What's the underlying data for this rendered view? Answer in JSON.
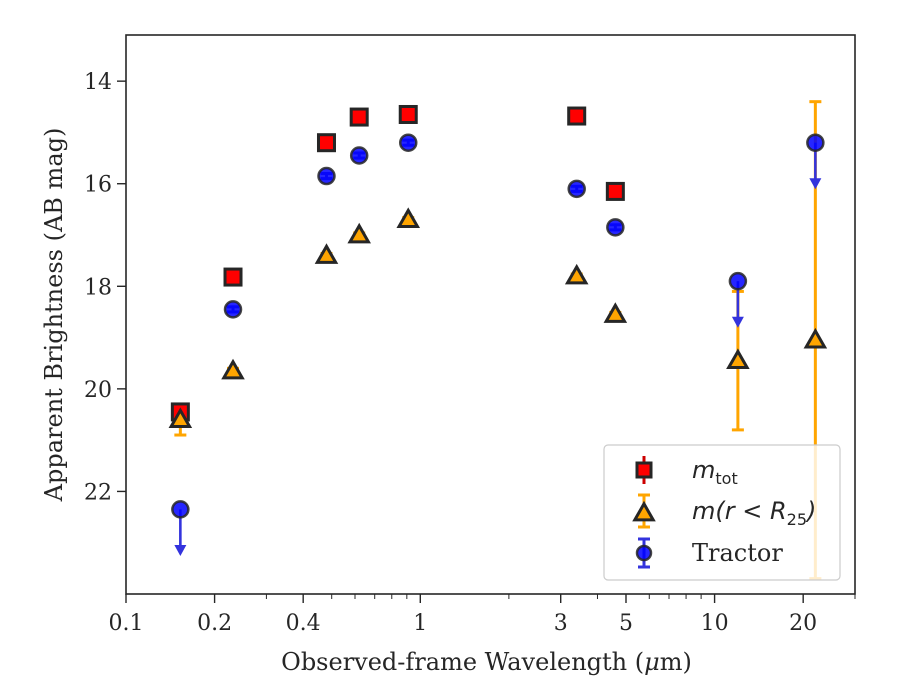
{
  "chart_data": {
    "type": "scatter",
    "xscale": "log",
    "yscale": "linear",
    "y_inverted": true,
    "xlim": [
      0.1,
      30
    ],
    "ylim": [
      24.0,
      13.1
    ],
    "xlabel": "Observed-frame Wavelength (μm)",
    "xlabel_parts": [
      "Observed-frame Wavelength (",
      "μ",
      "m)"
    ],
    "ylabel": "Apparent Brightness (AB mag)",
    "xticks": [
      {
        "value": 0.1,
        "label": "0.1"
      },
      {
        "value": 0.2,
        "label": "0.2"
      },
      {
        "value": 0.4,
        "label": "0.4"
      },
      {
        "value": 1,
        "label": "1"
      },
      {
        "value": 3,
        "label": "3"
      },
      {
        "value": 5,
        "label": "5"
      },
      {
        "value": 10,
        "label": "10"
      },
      {
        "value": 20,
        "label": "20"
      }
    ],
    "yticks": [
      {
        "value": 14,
        "label": "14"
      },
      {
        "value": 16,
        "label": "16"
      },
      {
        "value": 18,
        "label": "18"
      },
      {
        "value": 20,
        "label": "20"
      },
      {
        "value": 22,
        "label": "22"
      }
    ],
    "grid": false,
    "legend_position": "lower-right",
    "series": [
      {
        "name": "m_tot",
        "legend_main": "m",
        "legend_sub": "tot",
        "marker": "square",
        "color": "#ff0000",
        "edge": "#262626",
        "points": [
          {
            "x": 0.153,
            "y": 20.45,
            "err": 0.06
          },
          {
            "x": 0.231,
            "y": 17.82,
            "err": 0.05
          },
          {
            "x": 0.48,
            "y": 15.2,
            "err": 0.03
          },
          {
            "x": 0.62,
            "y": 14.7,
            "err": 0.03
          },
          {
            "x": 0.91,
            "y": 14.65,
            "err": 0.03
          },
          {
            "x": 3.4,
            "y": 14.68,
            "err": 0.03
          },
          {
            "x": 4.6,
            "y": 16.15,
            "err": 0.03
          }
        ]
      },
      {
        "name": "m(r < R_25)",
        "legend_main": "m(r < R",
        "legend_sub": "25",
        "legend_end": ")",
        "marker": "triangle",
        "color": "#ffa500",
        "edge": "#262626",
        "points": [
          {
            "x": 0.153,
            "y": 20.6,
            "err_lo": 0.25,
            "err_hi": 0.3
          },
          {
            "x": 0.231,
            "y": 19.65,
            "err": 0.05
          },
          {
            "x": 0.48,
            "y": 17.4,
            "err": 0.04
          },
          {
            "x": 0.62,
            "y": 17.0,
            "err": 0.04
          },
          {
            "x": 0.91,
            "y": 16.7,
            "err": 0.04
          },
          {
            "x": 3.4,
            "y": 17.8,
            "err": 0.04
          },
          {
            "x": 4.6,
            "y": 18.55,
            "err": 0.04
          },
          {
            "x": 12.0,
            "y": 19.45,
            "err_lo": 1.35,
            "err_hi": 1.35
          },
          {
            "x": 22.0,
            "y": 19.05,
            "err_lo": 4.65,
            "err_hi": 4.65
          }
        ]
      },
      {
        "name": "Tractor",
        "marker": "circle",
        "color": "#0000ff",
        "edge": "#262626",
        "points": [
          {
            "x": 0.153,
            "y": 22.35,
            "upper_limit": true
          },
          {
            "x": 0.231,
            "y": 18.45,
            "err": 0.05
          },
          {
            "x": 0.48,
            "y": 15.85,
            "err": 0.05
          },
          {
            "x": 0.62,
            "y": 15.45,
            "err": 0.05
          },
          {
            "x": 0.91,
            "y": 15.2,
            "err": 0.05
          },
          {
            "x": 3.4,
            "y": 16.1,
            "err": 0.05
          },
          {
            "x": 4.6,
            "y": 16.85,
            "err": 0.05
          },
          {
            "x": 12.0,
            "y": 17.9,
            "upper_limit": true
          },
          {
            "x": 22.0,
            "y": 15.2,
            "upper_limit": true
          }
        ]
      }
    ]
  }
}
